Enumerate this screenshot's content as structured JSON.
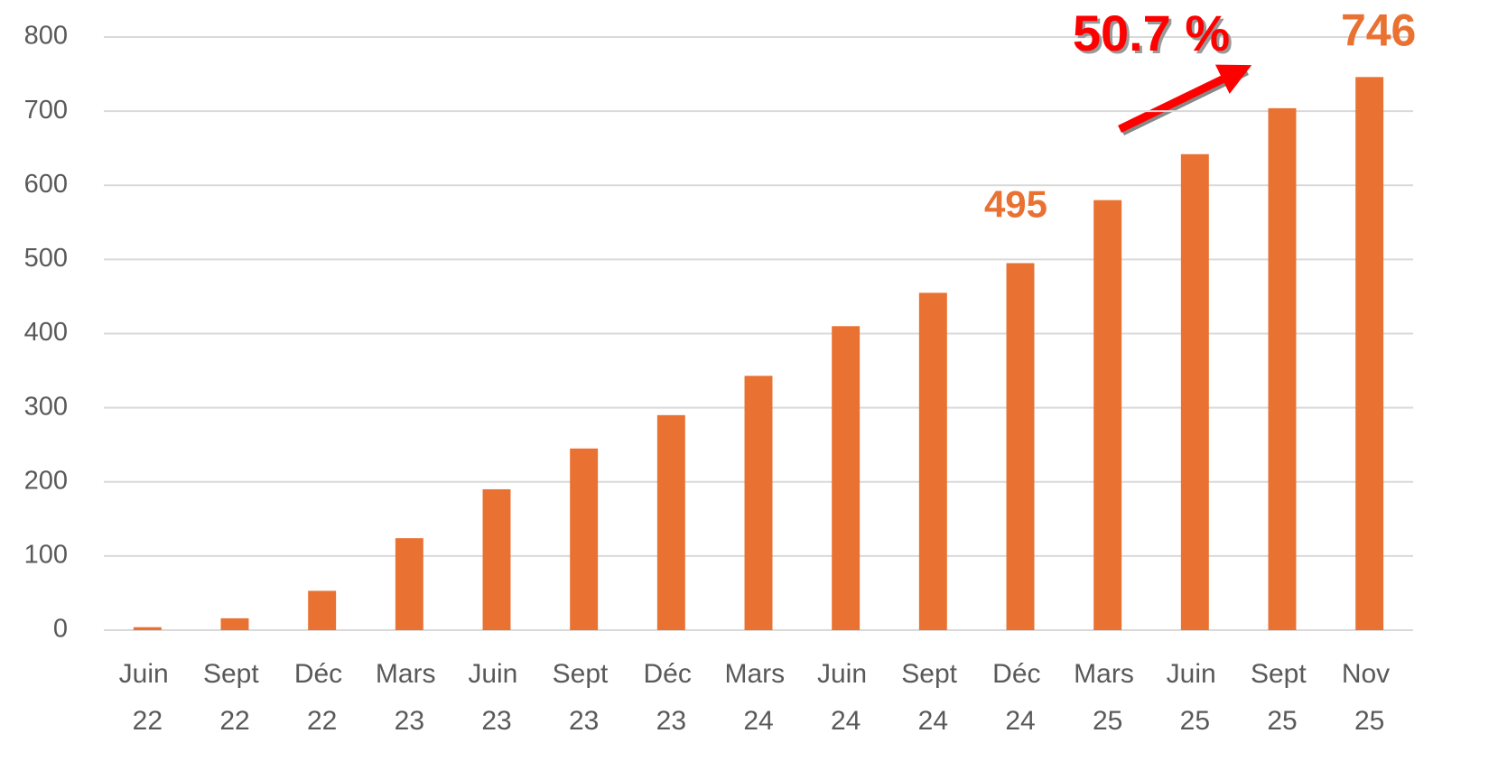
{
  "chart_data": {
    "type": "bar",
    "categories": [
      "Juin 22",
      "Sept 22",
      "Déc 22",
      "Mars 23",
      "Juin 23",
      "Sept 23",
      "Déc 23",
      "Mars 24",
      "Juin 24",
      "Sept 24",
      "Déc 24",
      "Mars 25",
      "Juin 25",
      "Sept 25",
      "Nov 25"
    ],
    "values": [
      4,
      16,
      53,
      124,
      190,
      245,
      290,
      343,
      410,
      455,
      495,
      580,
      642,
      704,
      746
    ],
    "value_labels": [
      null,
      null,
      null,
      null,
      null,
      null,
      null,
      null,
      null,
      null,
      "495",
      null,
      null,
      null,
      "746"
    ],
    "color": "#e97132",
    "ylim": [
      0,
      800
    ],
    "yticks": [
      0,
      100,
      200,
      300,
      400,
      500,
      600,
      700,
      800
    ],
    "grid": true,
    "annotations": [
      {
        "text": "50.7 %",
        "color": "#ff0000"
      }
    ]
  }
}
